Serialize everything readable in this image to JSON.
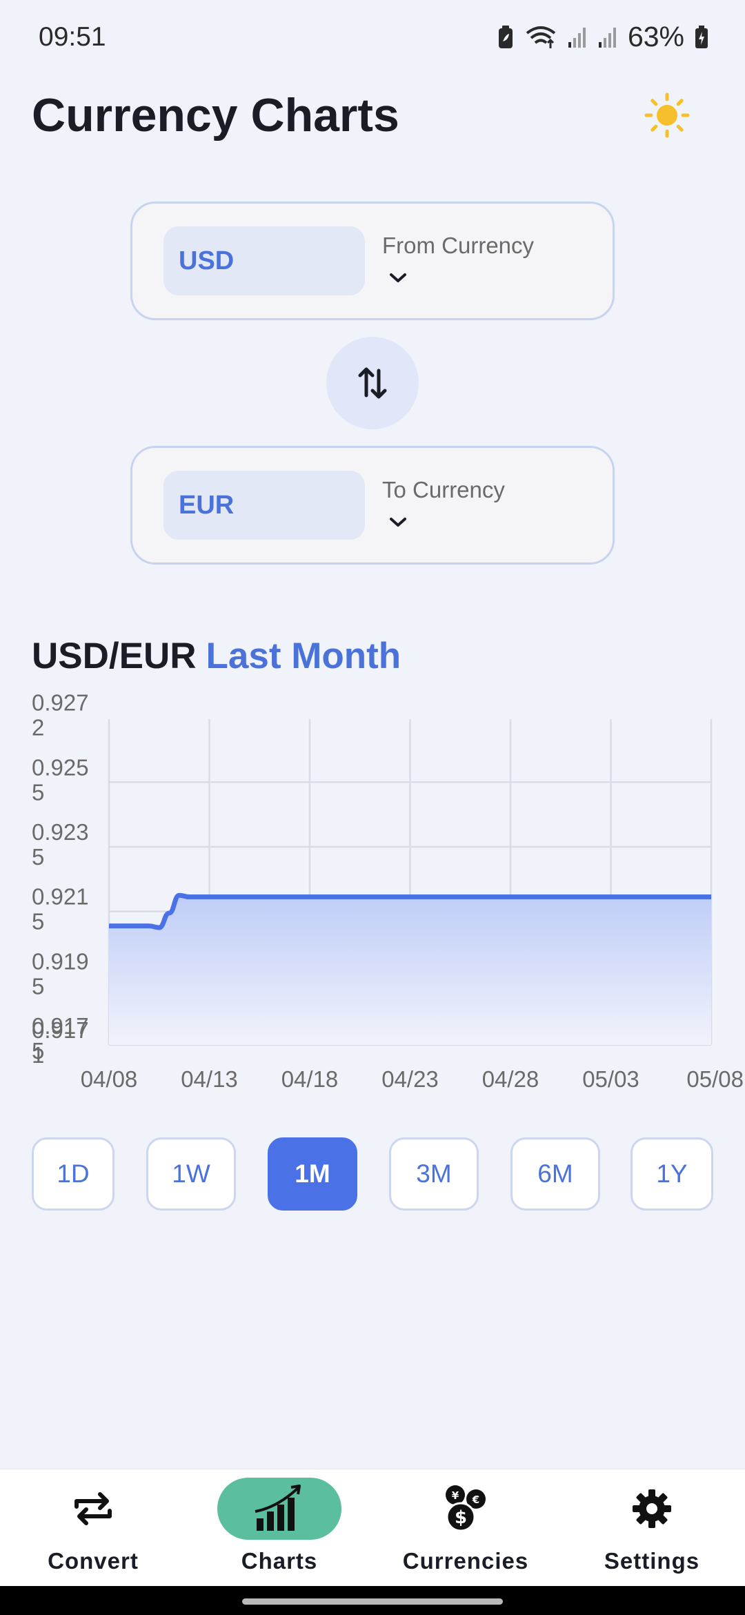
{
  "status_bar": {
    "time": "09:51",
    "battery_percent": "63%",
    "icons": [
      "battery-saver-icon",
      "wifi-icon",
      "signal-icon",
      "signal-icon",
      "battery-icon"
    ]
  },
  "header": {
    "title": "Currency Charts",
    "theme_icon": "sun-icon",
    "accent_color": "#f5c02c"
  },
  "from_currency": {
    "code": "USD",
    "label": "From Currency"
  },
  "swap_icon": "swap-vertical-icon",
  "to_currency": {
    "code": "EUR",
    "label": "To Currency"
  },
  "chart_header": {
    "pair": "USD/EUR",
    "period": "Last Month"
  },
  "chart_data": {
    "type": "area",
    "title": "USD/EUR Last Month",
    "xlabel": "",
    "ylabel": "",
    "y_tick_labels": [
      [
        "0.927",
        "2"
      ],
      [
        "0.925",
        "5"
      ],
      [
        "0.923",
        "5"
      ],
      [
        "0.921",
        "5"
      ],
      [
        "0.919",
        "5"
      ],
      [
        "0.917",
        "5"
      ],
      [
        "0.917",
        "1"
      ]
    ],
    "y_ticks": [
      0.92725,
      0.92525,
      0.92325,
      0.92125,
      0.91925,
      0.91725,
      0.91712
    ],
    "x_tick_labels": [
      "04/08",
      "04/13",
      "04/18",
      "04/23",
      "04/28",
      "05/03",
      "05/08"
    ],
    "x_ticks_day": [
      0,
      5,
      10,
      15,
      20,
      25,
      30
    ],
    "ylim": [
      0.91712,
      0.9272
    ],
    "grid": true,
    "series": [
      {
        "color": "#4a72e6",
        "x_day": [
          0,
          2,
          2.5,
          3,
          3.5,
          4,
          5,
          10,
          15,
          20,
          25,
          30
        ],
        "y": [
          0.9208,
          0.9208,
          0.92075,
          0.9212,
          0.92175,
          0.9217,
          0.9217,
          0.9217,
          0.9217,
          0.9217,
          0.9217,
          0.9217
        ]
      }
    ]
  },
  "range_buttons": [
    {
      "label": "1D",
      "active": false
    },
    {
      "label": "1W",
      "active": false
    },
    {
      "label": "1M",
      "active": true
    },
    {
      "label": "3M",
      "active": false
    },
    {
      "label": "6M",
      "active": false
    },
    {
      "label": "1Y",
      "active": false
    }
  ],
  "bottom_nav": [
    {
      "label": "Convert",
      "icon": "convert-arrows-icon",
      "active": false
    },
    {
      "label": "Charts",
      "icon": "chart-growth-icon",
      "active": true
    },
    {
      "label": "Currencies",
      "icon": "coins-icon",
      "active": false
    },
    {
      "label": "Settings",
      "icon": "gear-icon",
      "active": false
    }
  ]
}
